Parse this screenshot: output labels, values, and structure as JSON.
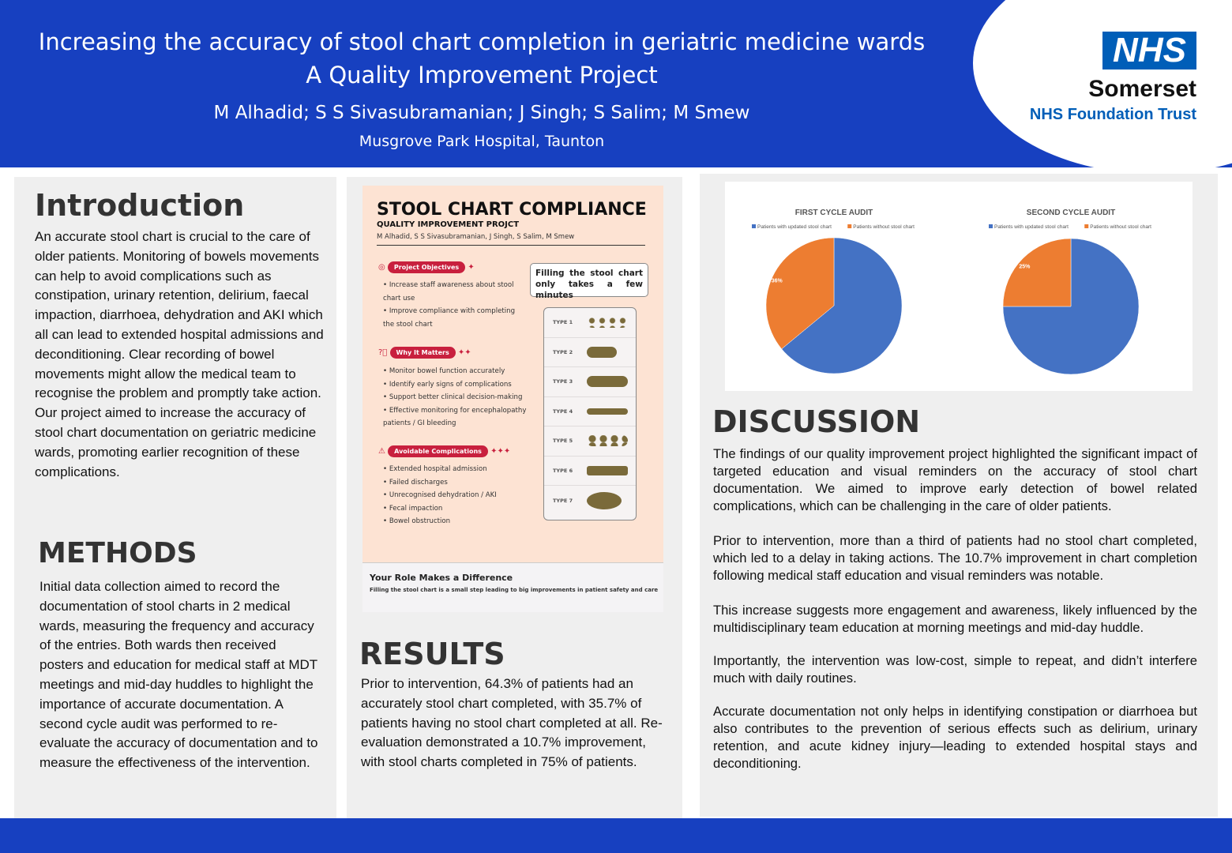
{
  "header": {
    "title_line1": "Increasing the accuracy of stool chart completion in geriatric medicine wards",
    "title_line2": "A Quality Improvement Project",
    "authors": "M Alhadid; S S Sivasubramanian; J Singh; S Salim; M Smew",
    "institution": "Musgrove Park Hospital, Taunton",
    "logo": {
      "nhs": "NHS",
      "org": "Somerset",
      "trust": "NHS Foundation Trust"
    }
  },
  "introduction": {
    "heading": "Introduction",
    "text": "An accurate stool chart is crucial to the care of older patients. Monitoring of bowels movements can help to avoid complications such as constipation, urinary retention, delirium, faecal impaction, diarrhoea, dehydration and AKI which all can lead to extended hospital admissions and deconditioning. Clear recording of bowel movements might allow the medical team to recognise the problem and promptly take action. Our project aimed to increase the accuracy of stool chart documentation on geriatric medicine wards, promoting earlier recognition of these complications."
  },
  "methods": {
    "heading": "METHODS",
    "text": "Initial data collection aimed to record the documentation of stool charts in 2 medical wards, measuring the frequency and accuracy of the entries. Both wards then received posters and education for medical staff at MDT meetings and mid-day huddles to highlight the importance of accurate documentation. A second cycle audit was performed to re-evaluate the accuracy of documentation and to measure the effectiveness of the intervention."
  },
  "mini_poster": {
    "title": "STOOL CHART COMPLIANCE",
    "subtitle": "QUALITY IMPROVEMENT PROJCT",
    "authors": "M Alhadid, S S Sivasubramanian, J Singh, S Salim, M Smew",
    "callout": "Filling the stool chart only takes a few minutes",
    "sections": [
      {
        "label": "Project Objectives",
        "icon": "target-icon",
        "items": [
          "Increase staff awareness about stool chart use",
          "Improve compliance with completing the stool chart"
        ]
      },
      {
        "label": "Why It Matters",
        "icon": "question-icon",
        "items": [
          "Monitor bowel function accurately",
          "Identify early signs of complications",
          "Support better clinical decision-making",
          "Effective monitoring for encephalopathy patients / GI bleeding"
        ]
      },
      {
        "label": "Avoidable Complications",
        "icon": "warning-icon",
        "items": [
          "Extended hospital admission",
          "Failed discharges",
          "Unrecognised dehydration / AKI",
          "Fecal impaction",
          "Bowel obstruction"
        ]
      }
    ],
    "types": [
      "TYPE 1",
      "TYPE 2",
      "TYPE 3",
      "TYPE 4",
      "TYPE 5",
      "TYPE 6",
      "TYPE 7"
    ],
    "footer_title": "Your Role Makes a Difference",
    "footer_text": "Filling the stool chart is a small step leading to big improvements in patient safety and care"
  },
  "results": {
    "heading": "RESULTS",
    "text": "Prior to intervention, 64.3% of patients had an accurately stool chart completed, with 35.7% of patients having no stool chart completed at all. Re-evaluation demonstrated a 10.7% improvement, with stool charts completed in 75% of patients."
  },
  "discussion": {
    "heading": "DISCUSSION",
    "paragraphs": [
      "The findings of our quality improvement project highlighted the significant impact of targeted education and visual reminders on the accuracy of stool chart documentation. We aimed to improve early detection of bowel related complications, which can be challenging in the care of older  patients.",
      "Prior to intervention, more than a third of patients had no stool chart completed, which led to a delay in taking actions. The 10.7% improvement in chart completion following medical staff education and visual reminders was notable.",
      "This increase suggests more engagement and awareness, likely influenced by the multidisciplinary team education at morning meetings and mid-day huddle.",
      "Importantly, the intervention was low-cost, simple to repeat, and didn’t interfere much with daily routines.",
      "Accurate documentation not only helps in identifying constipation or diarrhoea but also contributes to the prevention of serious effects such as delirium, urinary retention, and acute kidney injury—leading to extended hospital stays and deconditioning."
    ]
  },
  "chart_data": [
    {
      "type": "pie",
      "title": "FIRST CYCLE AUDIT",
      "categories": [
        "Patients with updated stool chart",
        "Patients without stool chart"
      ],
      "values": [
        64,
        36
      ],
      "labels": [
        "64%",
        "36%"
      ],
      "colors": [
        "#4472c4",
        "#ed7d31"
      ],
      "legend": "top"
    },
    {
      "type": "pie",
      "title": "SECOND CYCLE AUDIT",
      "categories": [
        "Patients with updated stool chart",
        "Patients without stool chart"
      ],
      "values": [
        75,
        25
      ],
      "labels": [
        "75%",
        "25%"
      ],
      "colors": [
        "#4472c4",
        "#ed7d31"
      ],
      "legend": "top"
    }
  ]
}
